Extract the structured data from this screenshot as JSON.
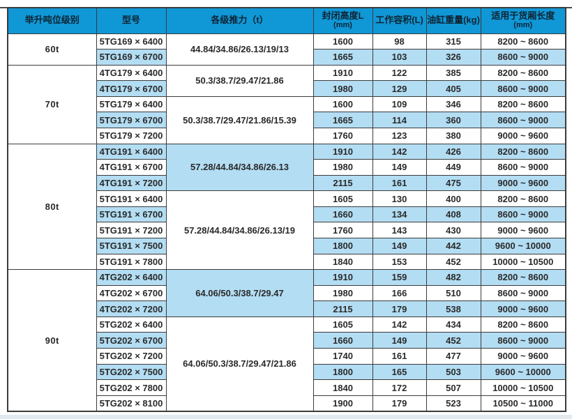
{
  "colors": {
    "header_bg": "#1097d6",
    "header_text": "#0e2433",
    "row_highlight": "#b3ddf3",
    "border": "#3b3b3b",
    "text": "#2a2a2a",
    "bottom_strip": "#e2eaf0",
    "page_bg": "#ffffff"
  },
  "table": {
    "headers": [
      {
        "key": "tonnage-class",
        "line1": "举升吨位级别",
        "line2": ""
      },
      {
        "key": "model",
        "line1": "型号",
        "line2": ""
      },
      {
        "key": "thrust",
        "line1": "各级推力（t）",
        "line2": ""
      },
      {
        "key": "closed-height",
        "line1": "封闭高度L",
        "line2": "(mm)"
      },
      {
        "key": "working-volume",
        "line1": "工作容积(L)",
        "line2": ""
      },
      {
        "key": "cylinder-weight",
        "line1": "油缸重量(kg)",
        "line2": ""
      },
      {
        "key": "cargo-length",
        "line1": "适用于货厢长度",
        "line2": "(mm)"
      }
    ],
    "groups": [
      {
        "tonnage": "60t",
        "subgroups": [
          {
            "thrust": "44.84/34.86/26.13/19/13",
            "thrust_highlight": false,
            "rows": [
              {
                "model": "5TG169 × 6400",
                "closed_height": "1600",
                "working_volume": "98",
                "weight": "315",
                "cargo_length": "8200 ~ 8600",
                "highlight": false
              },
              {
                "model": "5TG169 × 6700",
                "closed_height": "1665",
                "working_volume": "103",
                "weight": "326",
                "cargo_length": "8600 ~ 9000",
                "highlight": true
              }
            ]
          }
        ]
      },
      {
        "tonnage": "70t",
        "subgroups": [
          {
            "thrust": "50.3/38.7/29.47/21.86",
            "thrust_highlight": false,
            "rows": [
              {
                "model": "4TG179 × 6400",
                "closed_height": "1910",
                "working_volume": "122",
                "weight": "385",
                "cargo_length": "8200 ~ 8600",
                "highlight": false
              },
              {
                "model": "4TG179 × 6700",
                "closed_height": "1980",
                "working_volume": "129",
                "weight": "405",
                "cargo_length": "8600 ~ 9000",
                "highlight": true
              }
            ]
          },
          {
            "thrust": "50.3/38.7/29.47/21.86/15.39",
            "thrust_highlight": false,
            "rows": [
              {
                "model": "5TG179 × 6400",
                "closed_height": "1600",
                "working_volume": "109",
                "weight": "346",
                "cargo_length": "8200 ~ 8600",
                "highlight": false
              },
              {
                "model": "5TG179 × 6700",
                "closed_height": "1665",
                "working_volume": "114",
                "weight": "360",
                "cargo_length": "8600 ~ 9000",
                "highlight": true
              },
              {
                "model": "5TG179 × 7200",
                "closed_height": "1760",
                "working_volume": "123",
                "weight": "380",
                "cargo_length": "9000 ~ 9600",
                "highlight": false
              }
            ]
          }
        ]
      },
      {
        "tonnage": "80t",
        "subgroups": [
          {
            "thrust": "57.28/44.84/34.86/26.13",
            "thrust_highlight": true,
            "rows": [
              {
                "model": "4TG191 × 6400",
                "closed_height": "1910",
                "working_volume": "142",
                "weight": "426",
                "cargo_length": "8200 ~ 8600",
                "highlight": true
              },
              {
                "model": "4TG191 × 6700",
                "closed_height": "1980",
                "working_volume": "149",
                "weight": "449",
                "cargo_length": "8600 ~ 9000",
                "highlight": false
              },
              {
                "model": "4TG191 × 7200",
                "closed_height": "2115",
                "working_volume": "161",
                "weight": "475",
                "cargo_length": "9000 ~ 9600",
                "highlight": true
              }
            ]
          },
          {
            "thrust": "57.28/44.84/34.86/26.13/19",
            "thrust_highlight": false,
            "rows": [
              {
                "model": "5TG191 × 6400",
                "closed_height": "1605",
                "working_volume": "130",
                "weight": "400",
                "cargo_length": "8200 ~ 8600",
                "highlight": false
              },
              {
                "model": "5TG191 × 6700",
                "closed_height": "1660",
                "working_volume": "134",
                "weight": "408",
                "cargo_length": "8600 ~ 9000",
                "highlight": true
              },
              {
                "model": "5TG191 × 7200",
                "closed_height": "1760",
                "working_volume": "143",
                "weight": "430",
                "cargo_length": "9000 ~ 9600",
                "highlight": false
              },
              {
                "model": "5TG191 × 7500",
                "closed_height": "1800",
                "working_volume": "149",
                "weight": "442",
                "cargo_length": "9600 ~ 10000",
                "highlight": true
              },
              {
                "model": "5TG191 × 7800",
                "closed_height": "1840",
                "working_volume": "153",
                "weight": "452",
                "cargo_length": "10000 ~ 10500",
                "highlight": false
              }
            ]
          }
        ]
      },
      {
        "tonnage": "90t",
        "subgroups": [
          {
            "thrust": "64.06/50.3/38.7/29.47",
            "thrust_highlight": true,
            "rows": [
              {
                "model": "4TG202 × 6400",
                "closed_height": "1910",
                "working_volume": "159",
                "weight": "482",
                "cargo_length": "8200 ~ 8600",
                "highlight": true
              },
              {
                "model": "4TG202 × 6700",
                "closed_height": "1980",
                "working_volume": "166",
                "weight": "510",
                "cargo_length": "8600 ~ 9000",
                "highlight": false
              },
              {
                "model": "4TG202 × 7200",
                "closed_height": "2115",
                "working_volume": "179",
                "weight": "538",
                "cargo_length": "9000 ~ 9600",
                "highlight": true
              }
            ]
          },
          {
            "thrust": "64.06/50.3/38.7/29.47/21.86",
            "thrust_highlight": false,
            "rows": [
              {
                "model": "5TG202 × 6400",
                "closed_height": "1605",
                "working_volume": "142",
                "weight": "434",
                "cargo_length": "8200 ~ 8600",
                "highlight": false
              },
              {
                "model": "5TG202 × 6700",
                "closed_height": "1660",
                "working_volume": "149",
                "weight": "452",
                "cargo_length": "8600 ~ 9000",
                "highlight": true
              },
              {
                "model": "5TG202 × 7200",
                "closed_height": "1740",
                "working_volume": "161",
                "weight": "477",
                "cargo_length": "9000 ~ 9600",
                "highlight": false
              },
              {
                "model": "5TG202 × 7500",
                "closed_height": "1800",
                "working_volume": "165",
                "weight": "503",
                "cargo_length": "9600 ~ 10000",
                "highlight": true
              },
              {
                "model": "5TG202 × 7800",
                "closed_height": "1840",
                "working_volume": "172",
                "weight": "507",
                "cargo_length": "10000 ~ 10500",
                "highlight": false
              },
              {
                "model": "5TG202 × 8100",
                "closed_height": "1900",
                "working_volume": "179",
                "weight": "523",
                "cargo_length": "10500 ~ 11000",
                "highlight": false
              }
            ]
          }
        ]
      }
    ]
  }
}
